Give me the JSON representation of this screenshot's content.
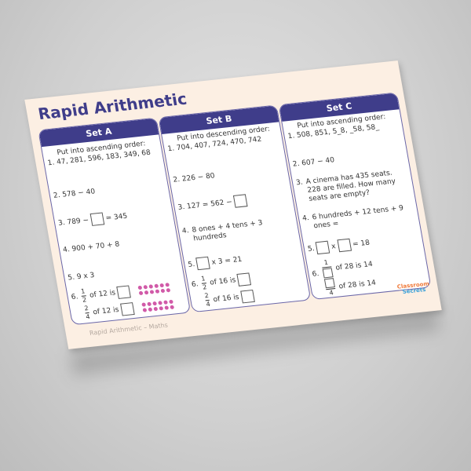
{
  "title": "Rapid Arithmetic",
  "footer": "Rapid Arithmetic – Maths",
  "logo": {
    "line1": "Classroom",
    "line2": "Secrets"
  },
  "colors": {
    "header": "#3f3d8a",
    "background": "#fcefe3",
    "dots": "#d15aa8"
  },
  "sets": [
    {
      "name": "Set A",
      "q1_label": "1.",
      "q1_text": "Put into ascending order:",
      "q1_values": "47, 281, 596, 183, 349, 68",
      "q2": "2.  578 − 40",
      "q3_a": "3.  789 −",
      "q3_b": "= 345",
      "q4": "4.  900 + 70 + 8",
      "q5": "5.  9 x 3",
      "q6_label": "6.",
      "f1_num": "1",
      "f1_den": "2",
      "f1_text": "of 12 is",
      "f2_num": "2",
      "f2_den": "4",
      "f2_text": "of 12 is",
      "dot_count": 12
    },
    {
      "name": "Set B",
      "q1_label": "1.",
      "q1_text": "Put into descending order:",
      "q1_values": "704, 407, 724, 470, 742",
      "q2": "2.  226 − 80",
      "q3_a": "3.  127 = 562 −",
      "q4_label": "4.",
      "q4": "8 ones + 4 tens + 3 hundreds",
      "q5_label": "5.",
      "q5_b": "x 3 = 21",
      "q6_label": "6.",
      "f1_num": "1",
      "f1_den": "2",
      "f1_text": "of 16 is",
      "f2_num": "2",
      "f2_den": "4",
      "f2_text": "of 16 is"
    },
    {
      "name": "Set C",
      "q1_label": "1.",
      "q1_text": "Put into ascending order:",
      "q1_values": "508, 851, 5_8, _58, 58_",
      "q2": "2.  607 − 40",
      "q3_label": "3.",
      "q3": "A cinema has 435 seats. 228 are filled. How many seats are empty?",
      "q4_label": "4.",
      "q4": "6 hundreds + 12 tens + 9 ones =",
      "q5_label": "5.",
      "q5_x": "x",
      "q5_b": "= 18",
      "q6_label": "6.",
      "f1_num": "1",
      "f1_text": "of 28 is 14",
      "f2_den": "4",
      "f2_text": "of 28 is 14"
    }
  ]
}
